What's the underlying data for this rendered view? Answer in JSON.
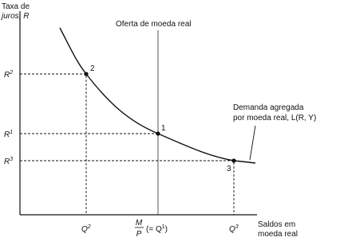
{
  "y_axis": {
    "title_lines": [
      "Taxa de",
      "juros, R"
    ],
    "ticks": [
      {
        "base": "R",
        "sup": "2"
      },
      {
        "base": "R",
        "sup": "1"
      },
      {
        "base": "R",
        "sup": "3"
      }
    ]
  },
  "x_axis": {
    "title_lines": [
      "Saldos em",
      "moeda real"
    ],
    "ticks": [
      {
        "base": "Q",
        "sup": "2"
      },
      {
        "num": "M",
        "den": "P",
        "rest": "(= Q",
        "sup": "1",
        "close": ")"
      },
      {
        "base": "Q",
        "sup": "3"
      }
    ]
  },
  "supply_label": "Oferta de moeda real",
  "demand_label_lines": [
    "Demanda agregada",
    "por moeda real, L(R, Y)"
  ],
  "points": [
    "2",
    "1",
    "3"
  ]
}
